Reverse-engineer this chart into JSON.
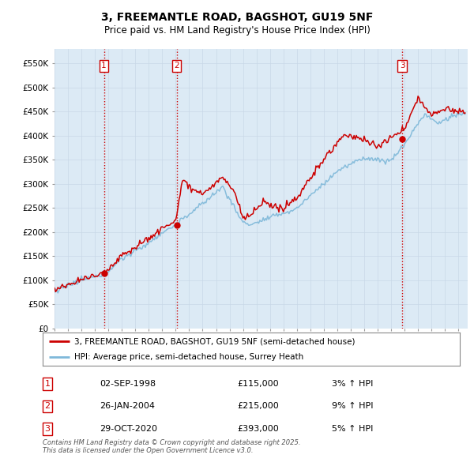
{
  "title": "3, FREEMANTLE ROAD, BAGSHOT, GU19 5NF",
  "subtitle": "Price paid vs. HM Land Registry's House Price Index (HPI)",
  "ylim": [
    0,
    580000
  ],
  "yticks": [
    0,
    50000,
    100000,
    150000,
    200000,
    250000,
    300000,
    350000,
    400000,
    450000,
    500000,
    550000
  ],
  "ytick_labels": [
    "£0",
    "£50K",
    "£100K",
    "£150K",
    "£200K",
    "£250K",
    "£300K",
    "£350K",
    "£400K",
    "£450K",
    "£500K",
    "£550K"
  ],
  "legend1_label": "3, FREEMANTLE ROAD, BAGSHOT, GU19 5NF (semi-detached house)",
  "legend2_label": "HPI: Average price, semi-detached house, Surrey Heath",
  "sale_labels": [
    {
      "num": "1",
      "date": "02-SEP-1998",
      "price": "£115,000",
      "hpi": "3% ↑ HPI",
      "x_year": 1998.67
    },
    {
      "num": "2",
      "date": "26-JAN-2004",
      "price": "£215,000",
      "hpi": "9% ↑ HPI",
      "x_year": 2004.07
    },
    {
      "num": "3",
      "date": "29-OCT-2020",
      "price": "£393,000",
      "hpi": "5% ↑ HPI",
      "x_year": 2020.83
    }
  ],
  "footer": "Contains HM Land Registry data © Crown copyright and database right 2025.\nThis data is licensed under the Open Government Licence v3.0.",
  "hpi_color": "#7eb8d9",
  "price_color": "#cc0000",
  "sale_vline_color": "#cc0000",
  "sale_box_color": "#cc0000",
  "background_color": "#dceaf5",
  "grid_color": "#c8d8e8",
  "xlim_start": 1995.0,
  "xlim_end": 2025.7
}
